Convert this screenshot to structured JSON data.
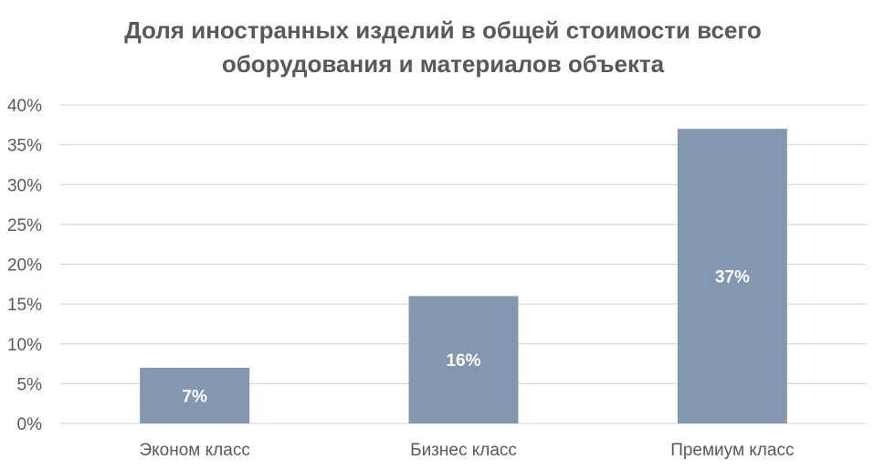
{
  "chart_data": {
    "type": "bar",
    "title_lines": [
      "Доля иностранных изделий в общей стоимости всего",
      "оборудования и материалов объекта"
    ],
    "categories": [
      "Эконом класс",
      "Бизнес класс",
      "Премиум класс"
    ],
    "values": [
      7,
      16,
      37
    ],
    "value_unit": "%",
    "data_labels": [
      "7%",
      "16%",
      "37%"
    ],
    "ylim": [
      0,
      40
    ],
    "yticks": [
      0,
      5,
      10,
      15,
      20,
      25,
      30,
      35,
      40
    ],
    "ytick_labels": [
      "0%",
      "5%",
      "10%",
      "15%",
      "20%",
      "25%",
      "30%",
      "35%",
      "40%"
    ],
    "grid": true,
    "legend": false,
    "xlabel": "",
    "ylabel": ""
  },
  "colors": {
    "bar": "#8497b0",
    "gridline": "#d9d9d9",
    "text": "#595959",
    "data_label": "#ffffff"
  }
}
